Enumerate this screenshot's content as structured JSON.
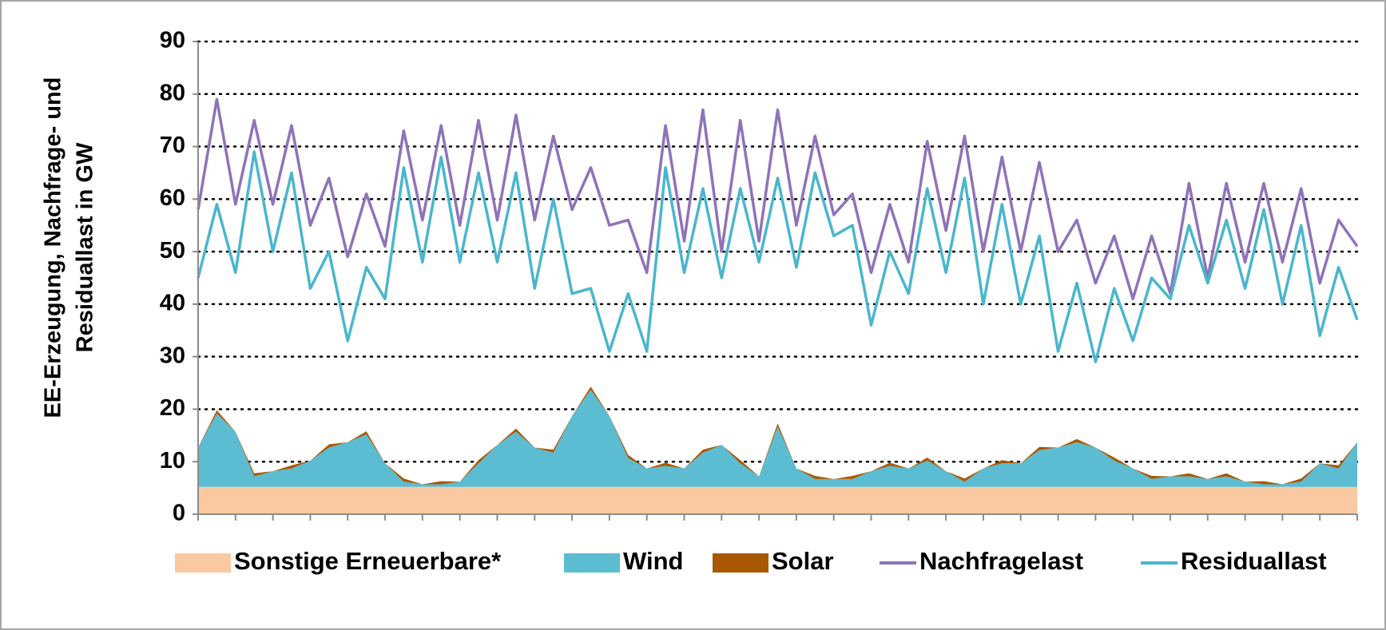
{
  "chart_data": {
    "type": "line",
    "ylabel": [
      "EE-Erzeugung, Nachfrage- und",
      "Residuallast in GW"
    ],
    "x": [
      0,
      0.5,
      1,
      1.5,
      2,
      2.5,
      3,
      3.5,
      4,
      4.5,
      5,
      5.5,
      6,
      6.5,
      7,
      7.5,
      8,
      8.5,
      9,
      9.5,
      10,
      10.5,
      11,
      11.5,
      12,
      12.5,
      13,
      13.5,
      14,
      14.5,
      15,
      15.5,
      16,
      16.5,
      17,
      17.5,
      18,
      18.5,
      19,
      19.5,
      20,
      20.5,
      21,
      21.5,
      22,
      22.5,
      23,
      23.5,
      24,
      24.5,
      25,
      25.5,
      26,
      26.5,
      27,
      27.5,
      28,
      28.5,
      29,
      29.5,
      30,
      30.5,
      31
    ],
    "xlim": [
      0,
      31
    ],
    "xticks": [
      0,
      1,
      2,
      3,
      4,
      5,
      6,
      7,
      8,
      9,
      10,
      11,
      12,
      13,
      14,
      15,
      16,
      17,
      18,
      19,
      20,
      21,
      22,
      23,
      24,
      25,
      26,
      27,
      28,
      29,
      30,
      31
    ],
    "ylim": [
      0,
      90
    ],
    "yticks": [
      0,
      10,
      20,
      30,
      40,
      50,
      60,
      70,
      80,
      90
    ],
    "grid": true,
    "legend": "bottom",
    "series": [
      {
        "name": "Sonstige Erneuerbare*",
        "kind": "area",
        "color": "#fac9a1",
        "values": [
          5.2,
          5.2,
          5.2,
          5.2,
          5.2,
          5.2,
          5.2,
          5.2,
          5.2,
          5.2,
          5.2,
          5.2,
          5.2,
          5.2,
          5.2,
          5.2,
          5.2,
          5.2,
          5.2,
          5.2,
          5.2,
          5.2,
          5.2,
          5.2,
          5.2,
          5.2,
          5.2,
          5.2,
          5.2,
          5.2,
          5.2,
          5.2,
          5.2,
          5.2,
          5.2,
          5.2,
          5.2,
          5.2,
          5.2,
          5.2,
          5.2,
          5.2,
          5.2,
          5.2,
          5.2,
          5.2,
          5.2,
          5.2,
          5.2,
          5.2,
          5.2,
          5.2,
          5.2,
          5.2,
          5.2,
          5.2,
          5.2,
          5.2,
          5.2,
          5.2,
          5.2,
          5.2,
          5.2
        ]
      },
      {
        "name": "Wind",
        "kind": "area",
        "color": "#5bbcd2",
        "values": [
          7.5,
          14,
          10.5,
          2,
          3,
          3.5,
          5,
          7.5,
          8.5,
          10,
          4.5,
          1,
          0.5,
          0.5,
          1,
          4.5,
          8,
          10.5,
          7.5,
          6.5,
          13.5,
          18.5,
          13.5,
          5.5,
          3.5,
          4,
          3.5,
          6.5,
          8,
          4.5,
          2,
          11.5,
          3.5,
          1.5,
          1.5,
          1.5,
          3,
          4,
          3.5,
          5,
          3,
          1,
          3.5,
          4.5,
          4.5,
          7,
          7.5,
          8.5,
          7.5,
          5,
          3.5,
          1.5,
          2,
          2,
          1.5,
          2,
          1,
          0.5,
          0.5,
          1,
          4.5,
          3.5,
          8.5
        ]
      },
      {
        "name": "Solar",
        "kind": "area",
        "color": "#a85800",
        "values": [
          0,
          0.6,
          0,
          0.6,
          0,
          0.6,
          0,
          0.6,
          0,
          0.6,
          0,
          0.6,
          0,
          0.6,
          0,
          0.6,
          0,
          0.6,
          0,
          0.6,
          0,
          0.6,
          0,
          0.6,
          0,
          0.6,
          0,
          0.6,
          0,
          0.6,
          0,
          0.6,
          0,
          0.6,
          0,
          0.6,
          0,
          0.6,
          0,
          0.6,
          0,
          0.6,
          0,
          0.6,
          0,
          0.6,
          0,
          0.6,
          0,
          0.6,
          0,
          0.6,
          0,
          0.6,
          0,
          0.6,
          0,
          0.6,
          0,
          0.6,
          0,
          0.6,
          0
        ]
      },
      {
        "name": "Nachfragelast",
        "kind": "line",
        "color": "#8f73b9",
        "values": [
          58,
          79,
          59,
          75,
          59,
          74,
          55,
          64,
          49,
          61,
          51,
          73,
          56,
          74,
          55,
          75,
          56,
          76,
          56,
          72,
          58,
          66,
          55,
          56,
          46,
          74,
          52,
          77,
          50,
          75,
          52,
          77,
          55,
          72,
          57,
          61,
          46,
          59,
          48,
          71,
          54,
          72,
          50,
          68,
          50,
          67,
          50,
          56,
          44,
          53,
          41,
          53,
          42,
          63,
          45,
          63,
          48,
          63,
          48,
          62,
          44,
          56,
          51
        ]
      },
      {
        "name": "Residuallast",
        "kind": "line",
        "color": "#4ab6cd",
        "values": [
          45,
          59,
          46,
          69,
          50,
          65,
          43,
          50,
          33,
          47,
          41,
          66,
          48,
          68,
          48,
          65,
          48,
          65,
          43,
          60,
          42,
          43,
          31,
          42,
          31,
          66,
          46,
          62,
          45,
          62,
          48,
          64,
          47,
          65,
          53,
          55,
          36,
          50,
          42,
          62,
          46,
          64,
          40,
          59,
          40,
          53,
          31,
          44,
          29,
          43,
          33,
          45,
          41,
          55,
          44,
          56,
          43,
          58,
          40,
          55,
          34,
          47,
          37
        ]
      }
    ]
  }
}
